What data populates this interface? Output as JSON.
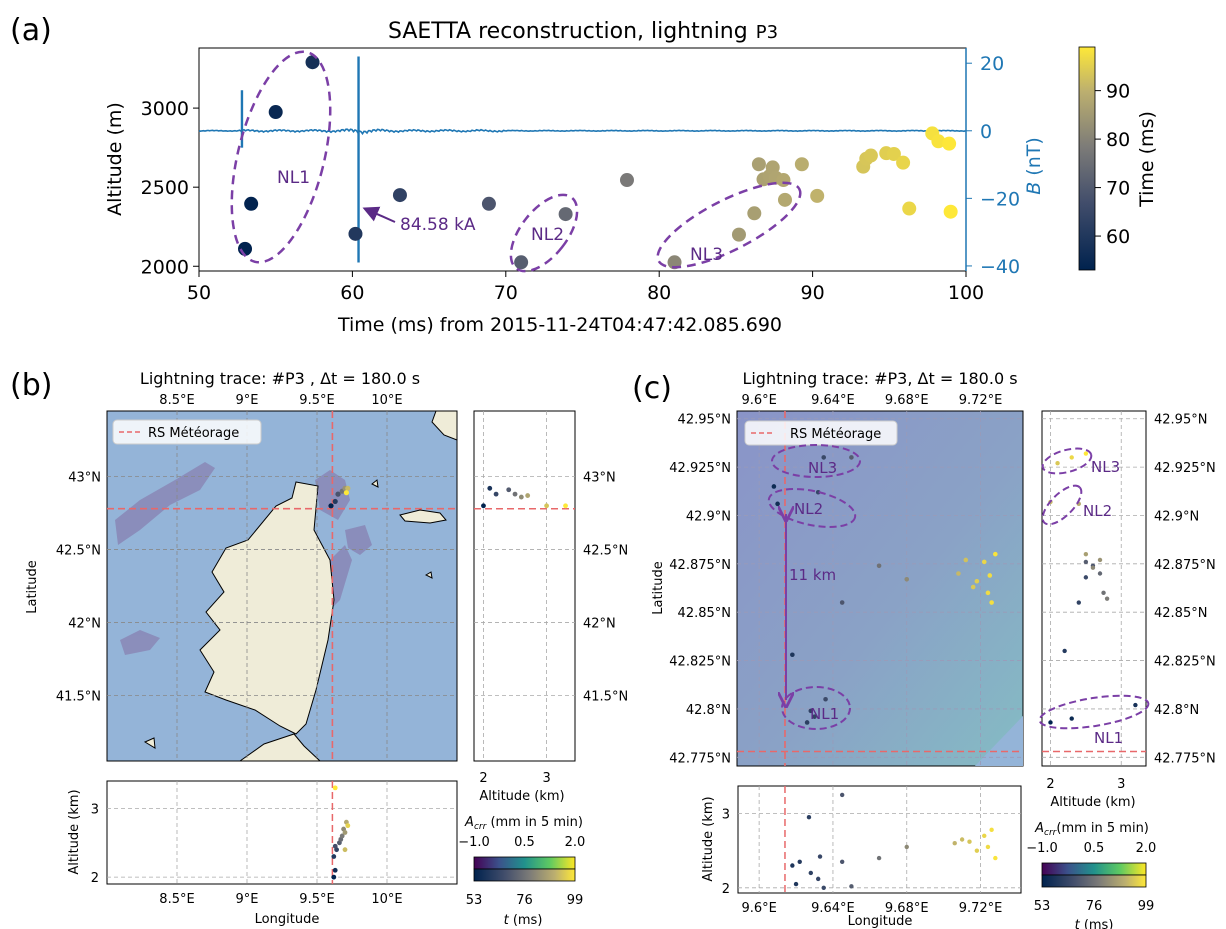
{
  "panels": {
    "a": {
      "tag": "(a)",
      "title": "SAETTA reconstruction, lightning",
      "title_id": "P3",
      "ylabel": "Altitude (m)",
      "xlabel": "Time (ms) from 2015-11-24T04:47:42.085.690",
      "y2label_italic": "B",
      "y2label_unit": " (nT)",
      "cbar_label": "Time (ms)",
      "annotation": "84.58 kA",
      "labels": [
        "NL1",
        "NL2",
        "NL3"
      ]
    },
    "b": {
      "tag": "(b)",
      "title": "Lightning trace: #P3   , Δt = 180.0 s",
      "legend": "RS Météorage",
      "xlabel": "Longitude",
      "ylabel": "Latitude",
      "alt_label": "Altitude (km)",
      "side_xlabel": "Altitude (km)",
      "cbar_rain_label": "A_crr (mm in 5 min)",
      "cbar_rain_prefix": "A",
      "cbar_rain_sub": "crr",
      "cbar_rain_unit": " (mm in 5 min)",
      "cbar_time_label": "t (ms)",
      "cbar_time_t": "t",
      "cbar_time_unit": " (ms)",
      "lon_ticks": [
        "8.5°E",
        "9°E",
        "9.5°E",
        "10°E"
      ],
      "lat_ticks": [
        "43°N",
        "42.5°N",
        "42°N",
        "41.5°N"
      ]
    },
    "c": {
      "tag": "(c)",
      "title": "Lightning trace: #P3, Δt = 180.0 s",
      "legend": "RS Météorage",
      "xlabel": "Longitude",
      "ylabel": "Latitude",
      "alt_label": "Altitude (km)",
      "side_xlabel": "Altitude (km)",
      "cbar_rain_label": "A_crr(mm in 5 min)",
      "cbar_rain_prefix": "A",
      "cbar_rain_sub": "crr",
      "cbar_rain_unit": "(mm in 5 min)",
      "cbar_time_label": "t (ms)",
      "cbar_time_t": "t",
      "cbar_time_unit": " (ms)",
      "distance_label": "11 km",
      "labels": [
        "NL1",
        "NL2",
        "NL3"
      ],
      "lon_ticks": [
        "9.6°E",
        "9.64°E",
        "9.68°E",
        "9.72°E"
      ],
      "lat_ticks": [
        "42.95°N",
        "42.925°N",
        "42.9°N",
        "42.875°N",
        "42.85°N",
        "42.825°N",
        "42.8°N",
        "42.775°N"
      ]
    }
  },
  "colors": {
    "axis_blue": "#1f77b4",
    "annotation_purple": "#5b2a86",
    "ellipse_purple": "#7b3fa6",
    "rs_red": "#e8686a",
    "sea": "#94b4d8",
    "land": "#efecd8",
    "grid": "#b0b0b0"
  },
  "chart_data": [
    {
      "id": "a",
      "type": "scatter",
      "title": "SAETTA reconstruction, lightning P3",
      "xlabel": "Time (ms) from 2015-11-24T04:47:42.085.690",
      "ylabel": "Altitude (m)",
      "xlim": [
        50,
        100
      ],
      "ylim": [
        1970,
        3380
      ],
      "x_ticks": [
        50,
        60,
        70,
        80,
        90,
        100
      ],
      "y_ticks": [
        2000,
        2500,
        3000
      ],
      "y2label": "B (nT)",
      "y2lim": [
        -41.5,
        24.5
      ],
      "y2_ticks": [
        -40,
        -20,
        0,
        20
      ],
      "colorbar": {
        "label": "Time (ms)",
        "range": [
          53,
          99
        ],
        "ticks": [
          60,
          70,
          80,
          90
        ]
      },
      "points": [
        {
          "x": 53.0,
          "y": 2110
        },
        {
          "x": 53.4,
          "y": 2395
        },
        {
          "x": 55.0,
          "y": 2975
        },
        {
          "x": 57.4,
          "y": 3290
        },
        {
          "x": 60.2,
          "y": 2205
        },
        {
          "x": 63.1,
          "y": 2450
        },
        {
          "x": 68.9,
          "y": 2395
        },
        {
          "x": 71.0,
          "y": 2025
        },
        {
          "x": 73.9,
          "y": 2330
        },
        {
          "x": 77.9,
          "y": 2545
        },
        {
          "x": 81.0,
          "y": 2025
        },
        {
          "x": 85.2,
          "y": 2200
        },
        {
          "x": 86.2,
          "y": 2335
        },
        {
          "x": 86.5,
          "y": 2645
        },
        {
          "x": 86.8,
          "y": 2550
        },
        {
          "x": 87.2,
          "y": 2570
        },
        {
          "x": 87.4,
          "y": 2625
        },
        {
          "x": 87.6,
          "y": 2560
        },
        {
          "x": 88.1,
          "y": 2545
        },
        {
          "x": 88.2,
          "y": 2420
        },
        {
          "x": 89.3,
          "y": 2645
        },
        {
          "x": 90.3,
          "y": 2445
        },
        {
          "x": 93.3,
          "y": 2630
        },
        {
          "x": 93.5,
          "y": 2680
        },
        {
          "x": 93.8,
          "y": 2700
        },
        {
          "x": 94.8,
          "y": 2715
        },
        {
          "x": 95.3,
          "y": 2710
        },
        {
          "x": 95.9,
          "y": 2655
        },
        {
          "x": 96.3,
          "y": 2365
        },
        {
          "x": 97.8,
          "y": 2840
        },
        {
          "x": 98.2,
          "y": 2790
        },
        {
          "x": 98.9,
          "y": 2775
        },
        {
          "x": 99.0,
          "y": 2345
        }
      ],
      "B_spikes_nT": [
        {
          "t": 52.8,
          "min": -5,
          "max": 12
        },
        {
          "t": 60.4,
          "min": -39,
          "max": 22
        }
      ]
    },
    {
      "id": "b",
      "type": "scatter",
      "title": "Lightning trace: #P3, Δt = 180.0 s",
      "xlabel": "Longitude",
      "ylabel": "Latitude",
      "lon_range": [
        8.0,
        10.5
      ],
      "lat_range": [
        41.05,
        43.45
      ],
      "sources_lonlat": [
        [
          9.6,
          42.8
        ],
        [
          9.63,
          42.83
        ],
        [
          9.65,
          42.88
        ],
        [
          9.68,
          42.9
        ],
        [
          9.7,
          42.92
        ],
        [
          9.72,
          42.92
        ],
        [
          9.71,
          42.89
        ]
      ],
      "rs_meteorage": {
        "lon": 9.61,
        "lat": 42.78
      },
      "side_altitude_km": [
        [
          2.0,
          42.8
        ],
        [
          2.1,
          42.92
        ],
        [
          2.2,
          42.88
        ],
        [
          2.4,
          42.91
        ],
        [
          2.5,
          42.88
        ],
        [
          2.6,
          42.86
        ],
        [
          2.7,
          42.87
        ],
        [
          3.0,
          42.8
        ],
        [
          3.3,
          42.8
        ]
      ],
      "cbar_rain": {
        "label": "A_crr (mm in 5 min)",
        "ticks": [
          -1.0,
          0.5,
          2.0
        ]
      },
      "cbar_time": {
        "label": "t (ms)",
        "ticks": [
          53,
          76,
          99
        ]
      }
    },
    {
      "id": "c",
      "type": "scatter",
      "title": "Lightning trace: #P3, Δt = 180.0 s",
      "xlabel": "Longitude",
      "ylabel": "Latitude",
      "lon_range": [
        9.588,
        9.743
      ],
      "lat_range": [
        42.7705,
        42.954
      ],
      "sources_lonlat": [
        [
          9.608,
          42.915
        ],
        [
          9.61,
          42.906
        ],
        [
          9.618,
          42.828
        ],
        [
          9.626,
          42.793
        ],
        [
          9.628,
          42.799
        ],
        [
          9.63,
          42.796
        ],
        [
          9.632,
          42.912
        ],
        [
          9.635,
          42.93
        ],
        [
          9.636,
          42.805
        ],
        [
          9.645,
          42.855
        ],
        [
          9.65,
          42.93
        ],
        [
          9.665,
          42.874
        ],
        [
          9.68,
          42.867
        ],
        [
          9.708,
          42.87
        ],
        [
          9.712,
          42.877
        ],
        [
          9.716,
          42.863
        ],
        [
          9.718,
          42.866
        ],
        [
          9.722,
          42.876
        ],
        [
          9.724,
          42.86
        ],
        [
          9.725,
          42.869
        ],
        [
          9.726,
          42.855
        ],
        [
          9.728,
          42.88
        ]
      ],
      "rs_meteorage": {
        "lon": 9.614,
        "lat": 42.778
      },
      "distance": "11 km",
      "cbar_rain": {
        "label": "A_crr (mm in 5 min)",
        "ticks": [
          -1.0,
          0.5,
          2.0
        ]
      },
      "cbar_time": {
        "label": "t (ms)",
        "ticks": [
          53,
          76,
          99
        ]
      }
    }
  ]
}
